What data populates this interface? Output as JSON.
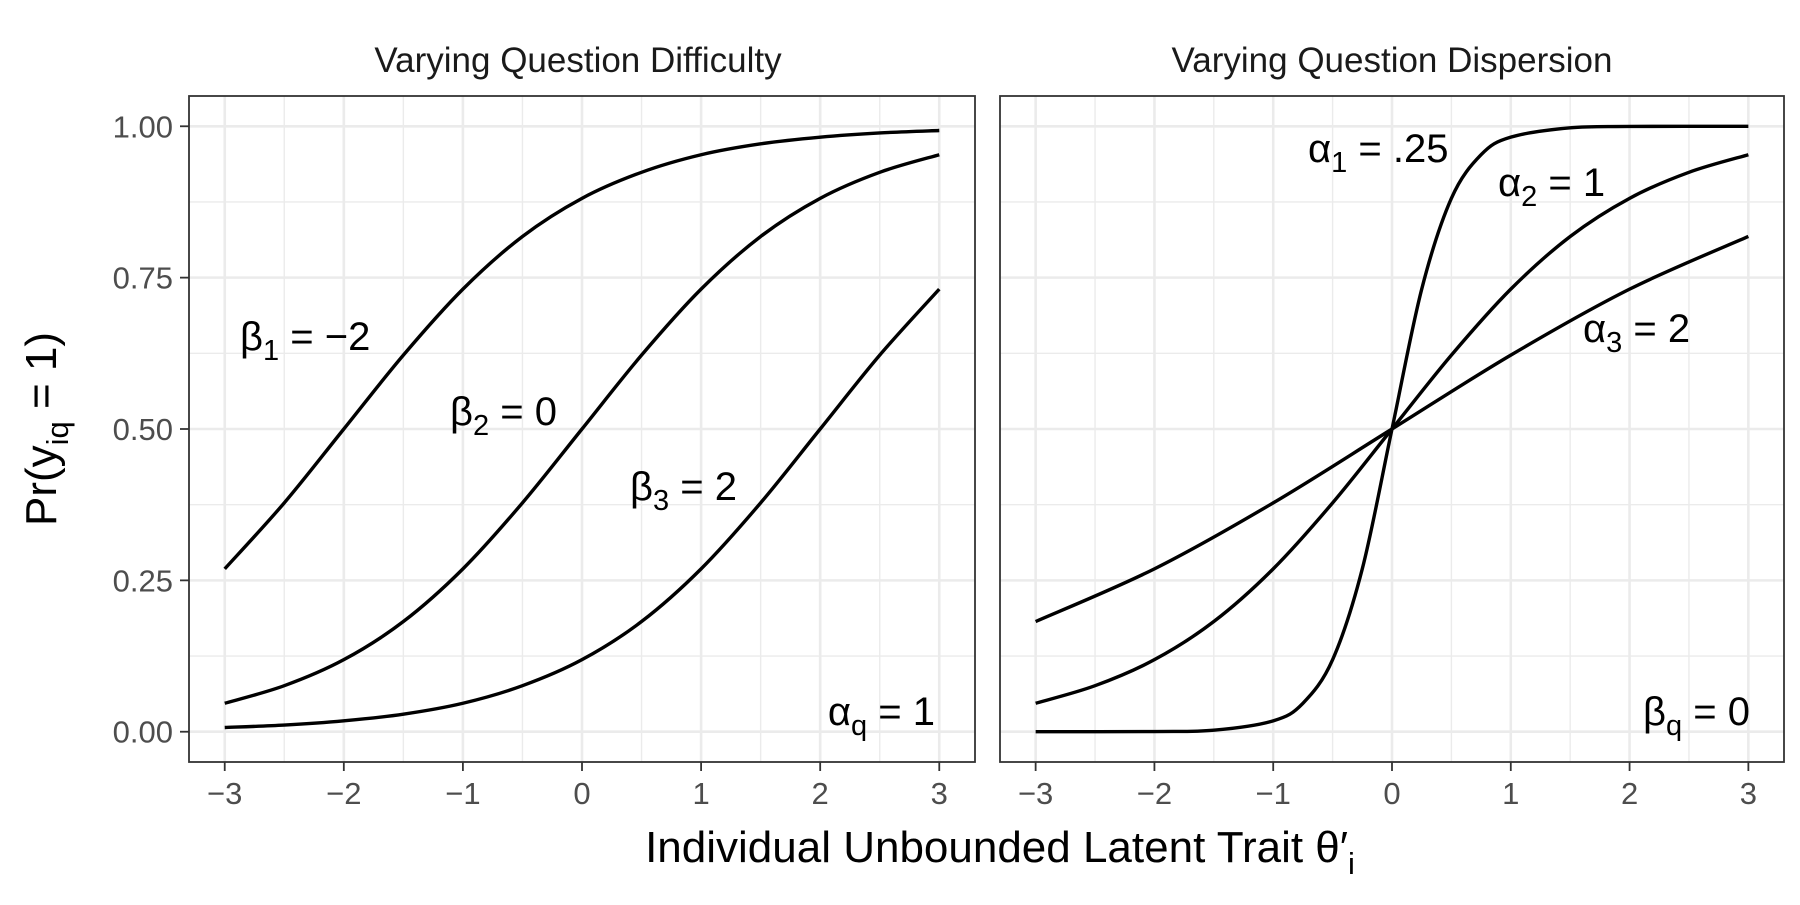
{
  "chart_data": {
    "type": "line",
    "xlabel": "Individual Unbounded Latent Trait θ′",
    "xlabel_sub": "i",
    "ylabel": "Pr(y",
    "ylabel_sub": "iq",
    "ylabel_end": " = 1)",
    "xlim": [
      -3,
      3
    ],
    "ylim": [
      0,
      1
    ],
    "x_ticks": [
      -3,
      -2,
      -1,
      0,
      1,
      2,
      3
    ],
    "x_tick_labels": [
      "−3",
      "−2",
      "−1",
      "0",
      "1",
      "2",
      "3"
    ],
    "y_ticks": [
      0,
      0.25,
      0.5,
      0.75,
      1.0
    ],
    "y_tick_labels": [
      "0.00",
      "0.25",
      "0.50",
      "0.75",
      "1.00"
    ],
    "grid": true,
    "legend": "none",
    "panels": [
      {
        "title": "Varying Question Difficulty",
        "series": [
          {
            "label_main": "β",
            "label_sub": "1",
            "label_rest": " = −2",
            "x": [
              -3,
              -2.5,
              -2,
              -1.5,
              -1,
              -0.5,
              0,
              0.5,
              1,
              1.5,
              2,
              2.5,
              3
            ],
            "y": [
              0.269,
              0.378,
              0.5,
              0.622,
              0.731,
              0.818,
              0.881,
              0.924,
              0.953,
              0.971,
              0.982,
              0.989,
              0.993
            ]
          },
          {
            "label_main": "β",
            "label_sub": "2",
            "label_rest": " = 0",
            "x": [
              -3,
              -2.5,
              -2,
              -1.5,
              -1,
              -0.5,
              0,
              0.5,
              1,
              1.5,
              2,
              2.5,
              3
            ],
            "y": [
              0.047,
              0.076,
              0.119,
              0.182,
              0.269,
              0.378,
              0.5,
              0.622,
              0.731,
              0.818,
              0.881,
              0.924,
              0.953
            ]
          },
          {
            "label_main": "β",
            "label_sub": "3",
            "label_rest": " = 2",
            "x": [
              -3,
              -2.5,
              -2,
              -1.5,
              -1,
              -0.5,
              0,
              0.5,
              1,
              1.5,
              2,
              2.5,
              3
            ],
            "y": [
              0.007,
              0.011,
              0.018,
              0.029,
              0.047,
              0.076,
              0.119,
              0.182,
              0.269,
              0.378,
              0.5,
              0.622,
              0.731
            ]
          }
        ],
        "corner_label": {
          "main": "α",
          "sub": "q",
          "rest": " = 1"
        }
      },
      {
        "title": "Varying Question Dispersion",
        "series": [
          {
            "label_main": "α",
            "label_sub": "1",
            "label_rest": " = .25",
            "x": [
              -3,
              -2,
              -1.5,
              -1,
              -0.75,
              -0.5,
              -0.25,
              0,
              0.25,
              0.5,
              0.75,
              1,
              1.5,
              2,
              3
            ],
            "y": [
              0.0,
              0.0003,
              0.0025,
              0.018,
              0.047,
              0.119,
              0.269,
              0.5,
              0.731,
              0.881,
              0.953,
              0.982,
              0.9975,
              0.9997,
              1.0
            ]
          },
          {
            "label_main": "α",
            "label_sub": "2",
            "label_rest": " = 1",
            "x": [
              -3,
              -2.5,
              -2,
              -1.5,
              -1,
              -0.5,
              0,
              0.5,
              1,
              1.5,
              2,
              2.5,
              3
            ],
            "y": [
              0.047,
              0.076,
              0.119,
              0.182,
              0.269,
              0.378,
              0.5,
              0.622,
              0.731,
              0.818,
              0.881,
              0.924,
              0.953
            ]
          },
          {
            "label_main": "α",
            "label_sub": "3",
            "label_rest": " = 2",
            "x": [
              -3,
              -2,
              -1,
              0,
              1,
              2,
              3
            ],
            "y": [
              0.182,
              0.269,
              0.378,
              0.5,
              0.622,
              0.731,
              0.818
            ]
          }
        ],
        "corner_label": {
          "main": "β",
          "sub": "q",
          "rest": " = 0"
        }
      }
    ]
  }
}
